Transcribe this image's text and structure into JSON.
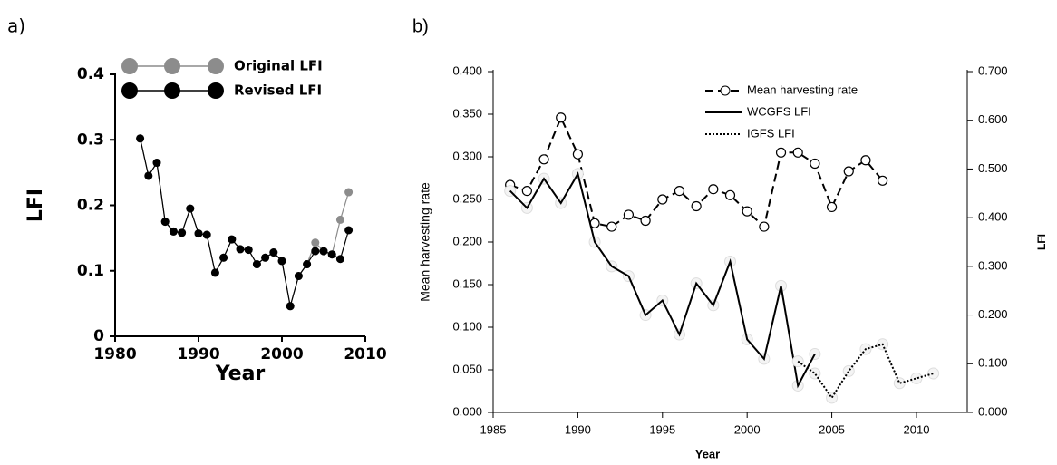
{
  "chart_data": [
    {
      "type": "line",
      "panel_label": "a)",
      "x_label": "Year",
      "y_label": "LFI",
      "xlim": [
        1980,
        2010
      ],
      "xticks": [
        1980,
        1990,
        2000,
        2010
      ],
      "ylim": [
        0,
        0.4
      ],
      "yticks": [
        0,
        0.1,
        0.2,
        0.3,
        0.4
      ],
      "x": [
        1983,
        1984,
        1985,
        1986,
        1987,
        1988,
        1989,
        1990,
        1991,
        1992,
        1993,
        1994,
        1995,
        1996,
        1997,
        1998,
        1999,
        2000,
        2001,
        2002,
        2003,
        2004,
        2005,
        2006,
        2007,
        2008
      ],
      "series": [
        {
          "name": "Original LFI",
          "color": "#8c8c8c",
          "marker": "circle",
          "values": [
            0.302,
            0.245,
            0.265,
            0.175,
            0.16,
            0.158,
            0.195,
            0.157,
            0.155,
            0.097,
            0.12,
            0.148,
            0.133,
            0.132,
            0.11,
            0.12,
            0.128,
            0.115,
            0.046,
            0.092,
            0.11,
            0.143,
            0.13,
            0.125,
            0.178,
            0.22
          ]
        },
        {
          "name": "Revised LFI",
          "color": "#000000",
          "marker": "circle",
          "values": [
            0.302,
            0.245,
            0.265,
            0.175,
            0.16,
            0.158,
            0.195,
            0.157,
            0.155,
            0.097,
            0.12,
            0.148,
            0.133,
            0.132,
            0.11,
            0.12,
            0.128,
            0.115,
            0.046,
            0.092,
            0.11,
            0.13,
            0.13,
            0.125,
            0.118,
            0.162
          ]
        }
      ]
    },
    {
      "type": "line",
      "panel_label": "b)",
      "x_label": "Year",
      "y_label": "Mean harvesting rate",
      "y2_label": "LFI",
      "xlim": [
        1985,
        2013
      ],
      "xticks": [
        1985,
        1990,
        1995,
        2000,
        2005,
        2010
      ],
      "ylim": [
        0,
        0.4
      ],
      "yticks": [
        {
          "value": 0,
          "label": "0.000"
        },
        {
          "value": 0.05,
          "label": "0.050"
        },
        {
          "value": 0.1,
          "label": "0.100"
        },
        {
          "value": 0.15,
          "label": "0.150"
        },
        {
          "value": 0.2,
          "label": "0.200"
        },
        {
          "value": 0.25,
          "label": "0.250"
        },
        {
          "value": 0.3,
          "label": "0.300"
        },
        {
          "value": 0.35,
          "label": "0.350"
        },
        {
          "value": 0.4,
          "label": "0.400"
        }
      ],
      "y2lim": [
        0,
        0.7
      ],
      "y2ticks": [
        {
          "value": 0,
          "label": "0.000"
        },
        {
          "value": 0.1,
          "label": "0.100"
        },
        {
          "value": 0.2,
          "label": "0.200"
        },
        {
          "value": 0.3,
          "label": "0.300"
        },
        {
          "value": 0.4,
          "label": "0.400"
        },
        {
          "value": 0.5,
          "label": "0.500"
        },
        {
          "value": 0.6,
          "label": "0.600"
        },
        {
          "value": 0.7,
          "label": "0.700"
        }
      ],
      "x": [
        1986,
        1987,
        1988,
        1989,
        1990,
        1991,
        1992,
        1993,
        1994,
        1995,
        1996,
        1997,
        1998,
        1999,
        2000,
        2001,
        2002,
        2003,
        2004,
        2005,
        2006,
        2007,
        2008,
        2009,
        2010,
        2011
      ],
      "series": [
        {
          "name": "Mean harvesting rate",
          "color": "#000000",
          "line_style": "dashed",
          "marker": "open-circle",
          "values": [
            0.267,
            0.26,
            0.297,
            0.346,
            0.303,
            0.222,
            0.218,
            0.232,
            0.225,
            0.25,
            0.26,
            0.242,
            0.262,
            0.255,
            0.236,
            0.218,
            0.305,
            0.305,
            0.292,
            0.241,
            0.283,
            0.296,
            0.272,
            null,
            null,
            null
          ]
        },
        {
          "name": "WCGFS LFI",
          "color": "#000000",
          "line_style": "solid",
          "axis": "y2",
          "values": [
            0.455,
            0.42,
            0.48,
            0.43,
            0.49,
            0.35,
            0.3,
            0.28,
            0.2,
            0.23,
            0.16,
            0.265,
            0.22,
            0.31,
            0.15,
            0.11,
            0.26,
            0.055,
            0.12,
            null,
            null,
            null,
            null,
            null,
            null,
            null
          ]
        },
        {
          "name": "IGFS LFI",
          "color": "#000000",
          "line_style": "dotted",
          "axis": "y2",
          "values": [
            null,
            null,
            null,
            null,
            null,
            null,
            null,
            null,
            null,
            null,
            null,
            null,
            null,
            null,
            null,
            null,
            null,
            0.105,
            0.08,
            0.03,
            0.085,
            0.13,
            0.14,
            0.06,
            0.07,
            0.08
          ]
        }
      ]
    }
  ]
}
